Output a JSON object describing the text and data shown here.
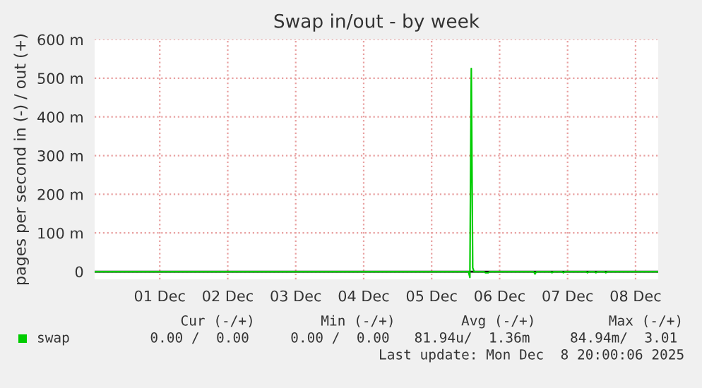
{
  "chart_data": {
    "type": "line",
    "title": "Swap in/out - by week",
    "ylabel": "pages per second in (-) / out (+)",
    "xlim": [
      "2025-11-30T13:00",
      "2025-12-08T20:00"
    ],
    "xticks": [
      {
        "value": "2025-12-01T12:00",
        "label": "01 Dec"
      },
      {
        "value": "2025-12-02T12:00",
        "label": "02 Dec"
      },
      {
        "value": "2025-12-03T12:00",
        "label": "03 Dec"
      },
      {
        "value": "2025-12-04T12:00",
        "label": "04 Dec"
      },
      {
        "value": "2025-12-05T12:00",
        "label": "05 Dec"
      },
      {
        "value": "2025-12-06T12:00",
        "label": "06 Dec"
      },
      {
        "value": "2025-12-07T12:00",
        "label": "07 Dec"
      },
      {
        "value": "2025-12-08T12:00",
        "label": "08 Dec"
      }
    ],
    "ylim": [
      -20,
      600
    ],
    "yticks": [
      0,
      {
        "value": 100,
        "label": "100 m"
      },
      {
        "value": 200,
        "label": "200 m"
      },
      {
        "value": 300,
        "label": "300 m"
      },
      {
        "value": 400,
        "label": "400 m"
      },
      {
        "value": 500,
        "label": "500 m"
      },
      {
        "value": 600,
        "label": "600 m"
      }
    ],
    "grid": true,
    "legend": "bottom left",
    "ref_lines": [
      {
        "axis": "y",
        "value": 0,
        "color": "#000000"
      }
    ],
    "series": [
      {
        "name": "swap",
        "color": "#00cc00",
        "x": [
          "2025-11-30T13:00",
          "2025-12-06T01:00",
          "2025-12-06T01:30",
          "2025-12-06T02:00",
          "2025-12-06T02:30",
          "2025-12-06T03:00",
          "2025-12-06T06:30",
          "2025-12-06T07:00",
          "2025-12-06T08:00",
          "2025-12-06T08:30",
          "2025-12-07T00:00",
          "2025-12-07T00:30",
          "2025-12-07T01:00",
          "2025-12-07T06:00",
          "2025-12-07T06:30",
          "2025-12-07T07:00",
          "2025-12-07T10:00",
          "2025-12-07T10:30",
          "2025-12-07T11:00",
          "2025-12-07T18:30",
          "2025-12-07T19:00",
          "2025-12-07T19:30",
          "2025-12-07T21:30",
          "2025-12-07T22:00",
          "2025-12-07T22:30",
          "2025-12-08T01:00",
          "2025-12-08T01:30",
          "2025-12-08T02:00",
          "2025-12-08T20:00"
        ],
        "values": [
          0,
          0,
          -15,
          525,
          10,
          0,
          0,
          -3,
          -3,
          0,
          0,
          -6,
          0,
          0,
          -3,
          0,
          0,
          -3,
          0,
          0,
          -3,
          0,
          0,
          -3,
          0,
          0,
          -3,
          0,
          0
        ]
      }
    ],
    "annotations": [
      "Cur (-/+)",
      "Min (-/+)",
      "Avg (-/+)",
      "Max (-/+)",
      "0.00 /  0.00",
      "0.00 /  0.00",
      "81.94u/  1.36m",
      "84.94m/  3.01",
      "Last update: Mon Dec  8 20:00:06 2025"
    ]
  }
}
